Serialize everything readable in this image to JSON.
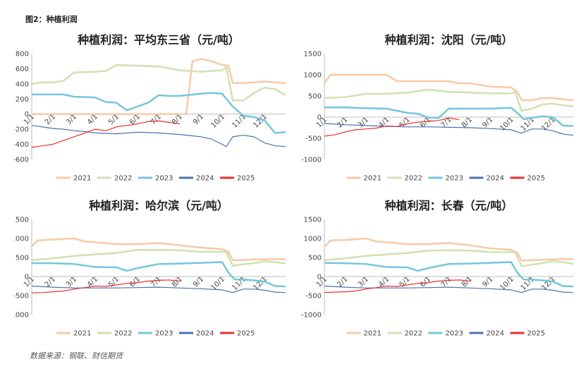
{
  "page": {
    "caption": "图2：种植利润",
    "source": "数据来源：钢联、财信期货"
  },
  "legend_colors": {
    "2021": "#f8c9a6",
    "2022": "#cfe2b0",
    "2023": "#74c6dc",
    "2024": "#4a72b0",
    "2025": "#e8312e"
  },
  "chart_data": [
    {
      "type": "line",
      "title": "种植利润：平均东三省（元/吨）",
      "ylim": [
        -600,
        800
      ],
      "yticks": [
        -600,
        -400,
        -200,
        0,
        200,
        400,
        600,
        800
      ],
      "x_ticks": [
        "1/1",
        "2/1",
        "3/1",
        "4/1",
        "5/1",
        "6/1",
        "7/1",
        "8/1",
        "9/1",
        "10/1",
        "11/1",
        "12/1"
      ],
      "grid": false,
      "legend": "bottom",
      "series": [
        {
          "name": "2021",
          "x": [
            0,
            1,
            2,
            3,
            4,
            5,
            6,
            7,
            7.3,
            7.6,
            8,
            8.5,
            9,
            9.3,
            9.5,
            10,
            10.5,
            11,
            11.5,
            12
          ],
          "y": [
            0,
            0,
            0,
            0,
            0,
            0,
            0,
            0,
            0,
            700,
            730,
            700,
            650,
            640,
            410,
            410,
            420,
            430,
            420,
            410
          ]
        },
        {
          "name": "2022",
          "x": [
            0,
            0.5,
            1,
            1.5,
            2,
            3,
            3.5,
            4,
            5,
            6,
            7,
            8,
            9,
            9.2,
            9.5,
            10,
            10.5,
            11,
            11.5,
            12
          ],
          "y": [
            400,
            420,
            420,
            440,
            550,
            560,
            570,
            650,
            640,
            630,
            580,
            560,
            580,
            620,
            180,
            180,
            280,
            350,
            330,
            250
          ]
        },
        {
          "name": "2023",
          "x": [
            0,
            0.5,
            1,
            1.5,
            2,
            3,
            3.5,
            4,
            4.5,
            5,
            5.5,
            6,
            6.5,
            7,
            8,
            8.5,
            9,
            9.5,
            10,
            10.5,
            11,
            11.5,
            12
          ],
          "y": [
            260,
            260,
            260,
            260,
            230,
            220,
            160,
            150,
            50,
            100,
            150,
            250,
            240,
            240,
            270,
            280,
            270,
            100,
            -20,
            -40,
            -80,
            -250,
            -240
          ]
        },
        {
          "name": "2024",
          "x": [
            0,
            0.5,
            1,
            1.5,
            2,
            2.5,
            3,
            4,
            5,
            6,
            7,
            8,
            8.5,
            9,
            9.2,
            9.5,
            10,
            10.5,
            11,
            11.5,
            12
          ],
          "y": [
            -150,
            -170,
            -190,
            -200,
            -220,
            -230,
            -250,
            -260,
            -240,
            -250,
            -270,
            -300,
            -330,
            -400,
            -430,
            -300,
            -280,
            -300,
            -380,
            -420,
            -430
          ]
        },
        {
          "name": "2025",
          "x": [
            0,
            0.5,
            1,
            1.5,
            2,
            2.5,
            3,
            3.5,
            4,
            4.5,
            5,
            5.5,
            6,
            6.5,
            7
          ],
          "y": [
            -440,
            -420,
            -400,
            -350,
            -300,
            -250,
            -200,
            -220,
            -170,
            -150,
            -130,
            -100,
            -90,
            -110,
            -130
          ]
        }
      ]
    },
    {
      "type": "line",
      "title": "种植利润：沈阳（元/吨）",
      "ylim": [
        -1000,
        1500
      ],
      "yticks": [
        -1000,
        -500,
        0,
        500,
        1000,
        1500
      ],
      "x_ticks": [
        "1/1",
        "2/1",
        "3/1",
        "4/1",
        "5/1",
        "6/1",
        "7/1",
        "8/1",
        "9/1",
        "10/1",
        "11/1",
        "12/1"
      ],
      "grid": false,
      "legend": "bottom",
      "series": [
        {
          "name": "2021",
          "x": [
            0,
            0.3,
            1,
            2,
            3,
            3.5,
            4,
            5,
            6,
            6.5,
            7,
            8,
            9,
            9.3,
            9.5,
            10,
            10.5,
            11,
            11.5,
            12
          ],
          "y": [
            800,
            1000,
            1000,
            1000,
            1000,
            850,
            850,
            850,
            850,
            800,
            800,
            720,
            700,
            600,
            400,
            400,
            450,
            450,
            420,
            400
          ]
        },
        {
          "name": "2022",
          "x": [
            0,
            1,
            2,
            3,
            4,
            5,
            6,
            7,
            8,
            9,
            9.2,
            9.5,
            10,
            10.5,
            11,
            11.5,
            12
          ],
          "y": [
            450,
            470,
            550,
            550,
            580,
            650,
            600,
            580,
            560,
            560,
            600,
            150,
            200,
            300,
            320,
            280,
            250
          ]
        },
        {
          "name": "2023",
          "x": [
            0,
            1,
            2,
            3,
            4,
            4.5,
            5,
            5.5,
            6,
            7,
            8,
            9,
            9.3,
            9.6,
            10,
            10.5,
            11,
            11.5,
            12
          ],
          "y": [
            230,
            230,
            210,
            200,
            100,
            80,
            -10,
            -20,
            200,
            200,
            200,
            220,
            100,
            -50,
            -20,
            20,
            0,
            -200,
            -210
          ]
        },
        {
          "name": "2024",
          "x": [
            0,
            1,
            2,
            3,
            4,
            5,
            6,
            7,
            8,
            9,
            9.5,
            10,
            10.5,
            11,
            11.5,
            12
          ],
          "y": [
            -150,
            -180,
            -200,
            -220,
            -230,
            -230,
            -240,
            -250,
            -270,
            -300,
            -380,
            -280,
            -280,
            -320,
            -400,
            -430
          ]
        },
        {
          "name": "2025",
          "x": [
            0,
            0.5,
            1,
            1.5,
            2,
            2.5,
            3,
            3.5,
            4,
            4.5,
            5,
            5.5,
            6,
            6.5
          ],
          "y": [
            -450,
            -420,
            -350,
            -300,
            -280,
            -260,
            -210,
            -220,
            -160,
            -120,
            -100,
            -80,
            -20,
            -60
          ]
        }
      ]
    },
    {
      "type": "line",
      "title": "种植利润：哈尔滨（元/吨）",
      "ylim": [
        -1000,
        1500
      ],
      "yticks": [
        -1000,
        -500,
        0,
        500,
        1000,
        1500
      ],
      "x_ticks": [
        "1/1",
        "2/1",
        "3/1",
        "4/1",
        "5/1",
        "6/1",
        "7/1",
        "8/1",
        "9/1",
        "10/1",
        "11/1",
        "12/1"
      ],
      "grid": false,
      "legend": "bottom",
      "series": [
        {
          "name": "2021",
          "x": [
            0,
            0.3,
            1,
            2,
            2.5,
            3,
            4,
            5,
            6,
            7,
            8,
            9,
            9.3,
            9.5,
            10,
            10.5,
            11,
            11.5,
            12
          ],
          "y": [
            800,
            950,
            970,
            1000,
            920,
            900,
            850,
            850,
            880,
            820,
            760,
            720,
            650,
            430,
            430,
            450,
            450,
            460,
            460
          ]
        },
        {
          "name": "2022",
          "x": [
            0,
            1,
            2,
            3,
            4,
            5,
            6,
            7,
            8,
            9,
            9.2,
            9.5,
            10,
            10.5,
            11,
            11.5,
            12
          ],
          "y": [
            430,
            480,
            540,
            580,
            620,
            700,
            700,
            690,
            650,
            650,
            640,
            280,
            320,
            350,
            400,
            380,
            340
          ]
        },
        {
          "name": "2023",
          "x": [
            0,
            1,
            2,
            3,
            4,
            4.5,
            5,
            6,
            7,
            8,
            9,
            9.3,
            9.6,
            10,
            10.5,
            11,
            11.5,
            12
          ],
          "y": [
            350,
            350,
            330,
            250,
            240,
            150,
            220,
            330,
            340,
            360,
            380,
            100,
            -80,
            -80,
            -100,
            -130,
            -250,
            -260
          ]
        },
        {
          "name": "2024",
          "x": [
            0,
            1,
            2,
            3,
            4,
            5,
            6,
            7,
            8,
            9,
            9.5,
            10,
            10.5,
            11,
            11.5,
            12
          ],
          "y": [
            -250,
            -280,
            -300,
            -300,
            -300,
            -290,
            -280,
            -300,
            -320,
            -350,
            -420,
            -330,
            -330,
            -360,
            -410,
            -420
          ]
        },
        {
          "name": "2025",
          "x": [
            0,
            0.5,
            1,
            1.5,
            2,
            2.5,
            3,
            3.5,
            4,
            4.5,
            5,
            5.5,
            6,
            6.5,
            7
          ],
          "y": [
            -430,
            -420,
            -400,
            -380,
            -330,
            -290,
            -250,
            -260,
            -220,
            -180,
            -160,
            -120,
            -100,
            -90,
            -120
          ]
        }
      ]
    },
    {
      "type": "line",
      "title": "种植利润：长春（元/吨）",
      "ylim": [
        -1000,
        1500
      ],
      "yticks": [
        -1000,
        -500,
        0,
        500,
        1000,
        1500
      ],
      "x_ticks": [
        "1/1",
        "2/1",
        "3/1",
        "4/1",
        "5/1",
        "6/1",
        "7/1",
        "8/1",
        "9/1",
        "10/1",
        "11/1",
        "12/1"
      ],
      "grid": false,
      "legend": "bottom",
      "series": [
        {
          "name": "2021",
          "x": [
            0,
            0.3,
            1,
            2,
            2.5,
            3,
            4,
            5,
            6,
            7,
            8,
            9,
            9.3,
            9.5,
            10,
            10.5,
            11,
            11.5,
            12
          ],
          "y": [
            780,
            950,
            960,
            1000,
            920,
            900,
            850,
            850,
            880,
            820,
            740,
            700,
            620,
            420,
            430,
            440,
            450,
            460,
            460
          ]
        },
        {
          "name": "2022",
          "x": [
            0,
            1,
            2,
            3,
            4,
            5,
            6,
            7,
            8,
            9,
            9.2,
            9.5,
            10,
            10.5,
            11,
            11.5,
            12
          ],
          "y": [
            430,
            480,
            540,
            580,
            620,
            680,
            690,
            680,
            640,
            640,
            630,
            270,
            310,
            350,
            400,
            380,
            330
          ]
        },
        {
          "name": "2023",
          "x": [
            0,
            1,
            2,
            3,
            4,
            4.5,
            5,
            6,
            7,
            8,
            9,
            9.3,
            9.6,
            10,
            10.5,
            11,
            11.5,
            12
          ],
          "y": [
            360,
            350,
            330,
            250,
            240,
            150,
            220,
            330,
            340,
            360,
            380,
            100,
            -80,
            -80,
            -100,
            -130,
            -250,
            -260
          ]
        },
        {
          "name": "2024",
          "x": [
            0,
            1,
            2,
            3,
            4,
            5,
            6,
            7,
            8,
            9,
            9.5,
            10,
            10.5,
            11,
            11.5,
            12
          ],
          "y": [
            -250,
            -280,
            -300,
            -300,
            -300,
            -290,
            -280,
            -300,
            -320,
            -350,
            -420,
            -330,
            -330,
            -360,
            -410,
            -420
          ]
        },
        {
          "name": "2025",
          "x": [
            0,
            0.5,
            1,
            1.5,
            2,
            2.5,
            3,
            3.5,
            4,
            4.5,
            5,
            5.5,
            6,
            6.5,
            7
          ],
          "y": [
            -420,
            -410,
            -400,
            -380,
            -330,
            -290,
            -250,
            -260,
            -220,
            -180,
            -160,
            -120,
            -100,
            -90,
            -120
          ]
        }
      ]
    }
  ]
}
